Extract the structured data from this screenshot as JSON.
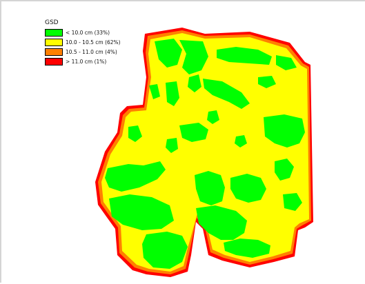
{
  "legend": {
    "title": "GSD",
    "items": [
      {
        "label": "< 10.0 cm (33%)",
        "color": "#00ff00"
      },
      {
        "label": "10.0 - 10.5 cm (62%)",
        "color": "#ffff00"
      },
      {
        "label": "10.5 - 11.0 cm (4%)",
        "color": "#ff8000"
      },
      {
        "label": "> 11.0 cm (1%)",
        "color": "#ff0000"
      }
    ]
  },
  "colors": {
    "under_10": "#00ff00",
    "from_10_to_10_5": "#ffff00",
    "from_10_5_to_11": "#ff8000",
    "over_11": "#ff0000"
  }
}
